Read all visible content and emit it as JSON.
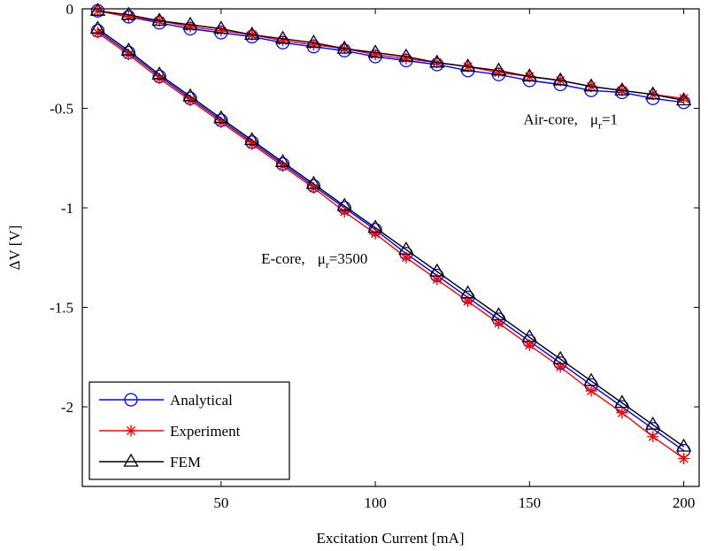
{
  "chart_data": {
    "type": "line",
    "title": "",
    "xlabel": "Excitation Current [mA]",
    "ylabel": "ΔV [V]",
    "xlim": [
      5,
      205
    ],
    "ylim": [
      -2.4,
      0
    ],
    "xticks": [
      50,
      100,
      150,
      200
    ],
    "yticks": [
      0,
      -0.5,
      -1,
      -1.5,
      -2
    ],
    "ytick_labels": [
      "0",
      "-0.5",
      "-1",
      "-1.5",
      "-2"
    ],
    "x": [
      10,
      20,
      30,
      40,
      50,
      60,
      70,
      80,
      90,
      100,
      110,
      120,
      130,
      140,
      150,
      160,
      170,
      180,
      190,
      200
    ],
    "groups": [
      {
        "name": "Air-core",
        "series": [
          {
            "name": "Analytical",
            "values": [
              -0.01,
              -0.04,
              -0.07,
              -0.1,
              -0.12,
              -0.14,
              -0.17,
              -0.19,
              -0.21,
              -0.24,
              -0.26,
              -0.28,
              -0.31,
              -0.33,
              -0.36,
              -0.38,
              -0.41,
              -0.42,
              -0.45,
              -0.47
            ]
          },
          {
            "name": "Experiment",
            "values": [
              -0.01,
              -0.04,
              -0.06,
              -0.09,
              -0.11,
              -0.13,
              -0.16,
              -0.18,
              -0.2,
              -0.23,
              -0.25,
              -0.27,
              -0.29,
              -0.32,
              -0.34,
              -0.36,
              -0.39,
              -0.41,
              -0.43,
              -0.45
            ]
          },
          {
            "name": "FEM",
            "values": [
              -0.01,
              -0.03,
              -0.06,
              -0.08,
              -0.1,
              -0.13,
              -0.15,
              -0.17,
              -0.2,
              -0.22,
              -0.24,
              -0.27,
              -0.29,
              -0.31,
              -0.34,
              -0.36,
              -0.39,
              -0.41,
              -0.43,
              -0.46
            ]
          }
        ]
      },
      {
        "name": "E-core",
        "series": [
          {
            "name": "Analytical",
            "values": [
              -0.11,
              -0.22,
              -0.34,
              -0.45,
              -0.56,
              -0.67,
              -0.78,
              -0.89,
              -1.0,
              -1.11,
              -1.23,
              -1.34,
              -1.45,
              -1.56,
              -1.67,
              -1.78,
              -1.89,
              -2.0,
              -2.11,
              -2.22
            ]
          },
          {
            "name": "Experiment",
            "values": [
              -0.12,
              -0.23,
              -0.35,
              -0.46,
              -0.57,
              -0.68,
              -0.79,
              -0.9,
              -1.02,
              -1.13,
              -1.25,
              -1.36,
              -1.47,
              -1.58,
              -1.69,
              -1.8,
              -1.92,
              -2.03,
              -2.15,
              -2.26
            ]
          },
          {
            "name": "FEM",
            "values": [
              -0.1,
              -0.21,
              -0.33,
              -0.44,
              -0.55,
              -0.66,
              -0.77,
              -0.88,
              -0.99,
              -1.1,
              -1.21,
              -1.32,
              -1.43,
              -1.54,
              -1.65,
              -1.76,
              -1.87,
              -1.98,
              -2.09,
              -2.2
            ]
          }
        ]
      }
    ],
    "styles": {
      "Analytical": {
        "color": "#0000ff",
        "marker": "circle"
      },
      "Experiment": {
        "color": "#ff0000",
        "marker": "asterisk"
      },
      "FEM": {
        "color": "#000000",
        "marker": "triangle"
      }
    },
    "annotations": [
      {
        "name": "air-core-label",
        "text": "Air-core,",
        "param": "μ",
        "sub": "r",
        "value": "=1",
        "at_x": 148,
        "at_y": -0.58
      },
      {
        "name": "e-core-label",
        "text": "E-core,",
        "param": "μ",
        "sub": "r",
        "value": "=3500",
        "at_x": 63,
        "at_y": -1.28
      }
    ],
    "legend": {
      "position": "bottom-left",
      "entries": [
        "Analytical",
        "Experiment",
        "FEM"
      ]
    },
    "grid": false
  }
}
